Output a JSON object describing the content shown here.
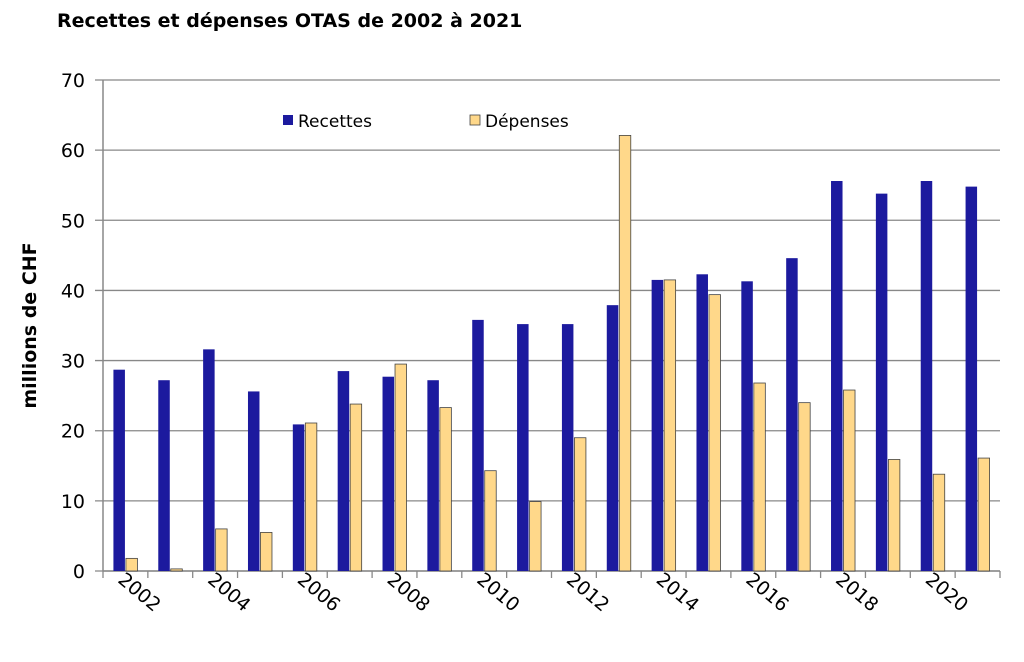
{
  "chart_data": {
    "type": "bar",
    "title": "Recettes et dépenses OTAS de 2002 à 2021",
    "xlabel": "",
    "ylabel": "millions de CHF",
    "ylim": [
      0,
      70
    ],
    "yticks": [
      0,
      10,
      20,
      30,
      40,
      50,
      60,
      70
    ],
    "grid": true,
    "legend_position": "top-center",
    "categories": [
      "2002",
      "2003",
      "2004",
      "2005",
      "2006",
      "2007",
      "2008",
      "2009",
      "2010",
      "2011",
      "2012",
      "2013",
      "2014",
      "2015",
      "2016",
      "2017",
      "2018",
      "2019",
      "2020",
      "2021"
    ],
    "xtick_labels": [
      "2002",
      "2004",
      "2006",
      "2008",
      "2010",
      "2012",
      "2014",
      "2016",
      "2018",
      "2020"
    ],
    "series": [
      {
        "name": "Recettes",
        "color": "#1c1a9e",
        "values": [
          28.7,
          27.2,
          31.6,
          25.6,
          20.9,
          28.5,
          27.7,
          27.2,
          35.8,
          35.2,
          35.2,
          37.9,
          41.5,
          42.3,
          41.3,
          44.6,
          55.6,
          53.8,
          55.6,
          54.8
        ]
      },
      {
        "name": "Dépenses",
        "color": "#ffd88a",
        "values": [
          1.8,
          0.3,
          6.0,
          5.5,
          21.1,
          23.8,
          29.5,
          23.3,
          14.3,
          9.9,
          19.0,
          62.1,
          41.5,
          39.4,
          26.8,
          24.0,
          25.8,
          15.9,
          13.8,
          16.1
        ]
      }
    ]
  }
}
